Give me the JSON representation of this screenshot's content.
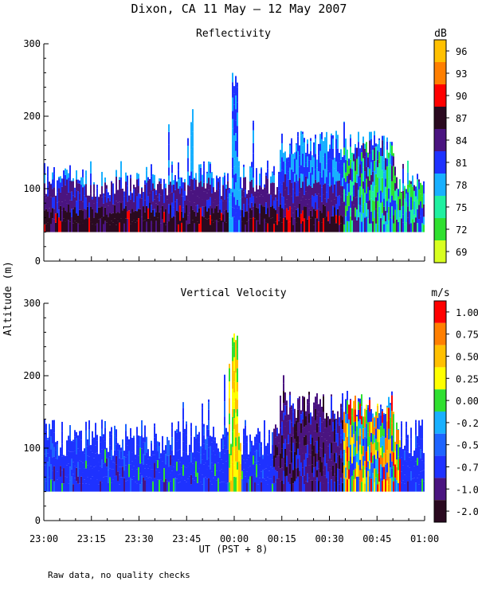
{
  "title": "Dixon, CA 11 May – 12 May 2007",
  "ylabel": "Altitude (m)",
  "xlabel": "UT  (PST + 8)",
  "footnote": "Raw data, no quality checks",
  "x_ticks": [
    "23:00",
    "23:15",
    "23:30",
    "23:45",
    "00:00",
    "00:15",
    "00:30",
    "00:45",
    "01:00"
  ],
  "chart_data": [
    {
      "type": "heatmap",
      "title": "Reflectivity",
      "units": "dB",
      "ylim": [
        0,
        300
      ],
      "y_ticks": [
        0,
        100,
        200,
        300
      ],
      "xlim_minutes": [
        0,
        120
      ],
      "colorbar": {
        "labels": [
          "96",
          "93",
          "90",
          "87",
          "84",
          "81",
          "78",
          "75",
          "72",
          "69"
        ],
        "colors": [
          "#ffc000",
          "#ff7f00",
          "#ff0000",
          "#2a0a20",
          "#4a1480",
          "#1e32ff",
          "#18b0ff",
          "#20f0a0",
          "#30e030",
          "#d8ff20"
        ]
      },
      "features": [
        {
          "time_range": "23:00-01:00",
          "altitude_m": [
            40,
            140
          ],
          "dB_range": [
            81,
            87
          ]
        },
        {
          "time": "00:00",
          "altitude_m": [
            40,
            260
          ],
          "dB_range": [
            78,
            81
          ]
        },
        {
          "time_range": "00:35-01:00",
          "altitude_m": [
            40,
            180
          ],
          "dB_range": [
            72,
            81
          ]
        }
      ]
    },
    {
      "type": "heatmap",
      "title": "Vertical Velocity",
      "units": "m/s",
      "ylim": [
        0,
        300
      ],
      "y_ticks": [
        0,
        100,
        200,
        300
      ],
      "xlim_minutes": [
        0,
        120
      ],
      "colorbar": {
        "labels": [
          "1.00",
          "0.75",
          "0.50",
          "0.25",
          "0.00",
          "-0.25",
          "-0.50",
          "-0.75",
          "-1.00",
          "-2.00"
        ],
        "colors": [
          "#ff0000",
          "#ff7f00",
          "#ffc000",
          "#ffff00",
          "#30e030",
          "#18b0ff",
          "#1e64ff",
          "#1e32ff",
          "#4a1480",
          "#2a0a20"
        ]
      },
      "features": [
        {
          "time_range": "23:00-00:15",
          "altitude_m": [
            40,
            140
          ],
          "velocity_range": [
            -0.75,
            -0.5
          ]
        },
        {
          "time": "00:00",
          "altitude_m": [
            40,
            260
          ],
          "velocity_range": [
            0.25,
            0.75
          ]
        },
        {
          "time_range": "00:35-00:55",
          "altitude_m": [
            40,
            180
          ],
          "velocity_range": [
            -0.5,
            1.0
          ]
        }
      ]
    }
  ]
}
